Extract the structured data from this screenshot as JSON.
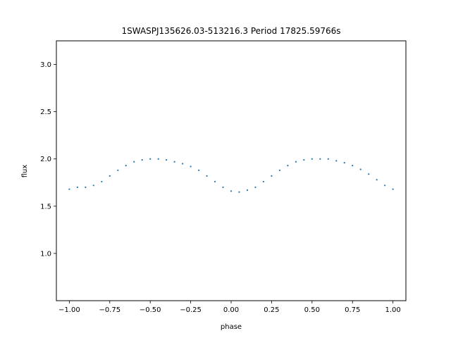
{
  "chart_data": {
    "type": "scatter",
    "title": "1SWASPJ135626.03-513216.3 Period 17825.59766s",
    "xlabel": "phase",
    "ylabel": "flux",
    "xlim": [
      -1.08,
      1.08
    ],
    "ylim": [
      0.5,
      3.25
    ],
    "xticks": [
      -1.0,
      -0.75,
      -0.5,
      -0.25,
      0.0,
      0.25,
      0.5,
      0.75,
      1.0
    ],
    "xtick_labels": [
      "−1.00",
      "−0.75",
      "−0.50",
      "−0.25",
      "0.00",
      "0.25",
      "0.50",
      "0.75",
      "1.00"
    ],
    "yticks": [
      1.0,
      1.5,
      2.0,
      2.5,
      3.0
    ],
    "ytick_labels": [
      "1.0",
      "1.5",
      "2.0",
      "2.5",
      "3.0"
    ],
    "grid": false,
    "point_color": "#1f77b4",
    "series": [
      {
        "x": [
          -1.0,
          -0.95,
          -0.9,
          -0.85,
          -0.8,
          -0.75,
          -0.7,
          -0.65,
          -0.6,
          -0.55,
          -0.5,
          -0.45,
          -0.4,
          -0.35,
          -0.3,
          -0.25,
          -0.2,
          -0.15,
          -0.1,
          -0.05,
          0.0,
          0.05,
          0.1,
          0.15,
          0.2,
          0.25,
          0.3,
          0.35,
          0.4,
          0.45,
          0.5,
          0.55,
          0.6,
          0.65,
          0.7,
          0.75,
          0.8,
          0.85,
          0.9,
          0.95,
          1.0
        ],
        "y": [
          1.68,
          1.7,
          1.7,
          1.72,
          1.76,
          1.82,
          1.88,
          1.93,
          1.97,
          1.99,
          2.0,
          2.0,
          1.99,
          1.97,
          1.95,
          1.92,
          1.88,
          1.82,
          1.76,
          1.7,
          1.66,
          1.65,
          1.67,
          1.7,
          1.76,
          1.82,
          1.88,
          1.93,
          1.97,
          1.99,
          2.0,
          2.0,
          2.0,
          1.98,
          1.96,
          1.93,
          1.89,
          1.84,
          1.78,
          1.72,
          1.68
        ]
      }
    ]
  }
}
